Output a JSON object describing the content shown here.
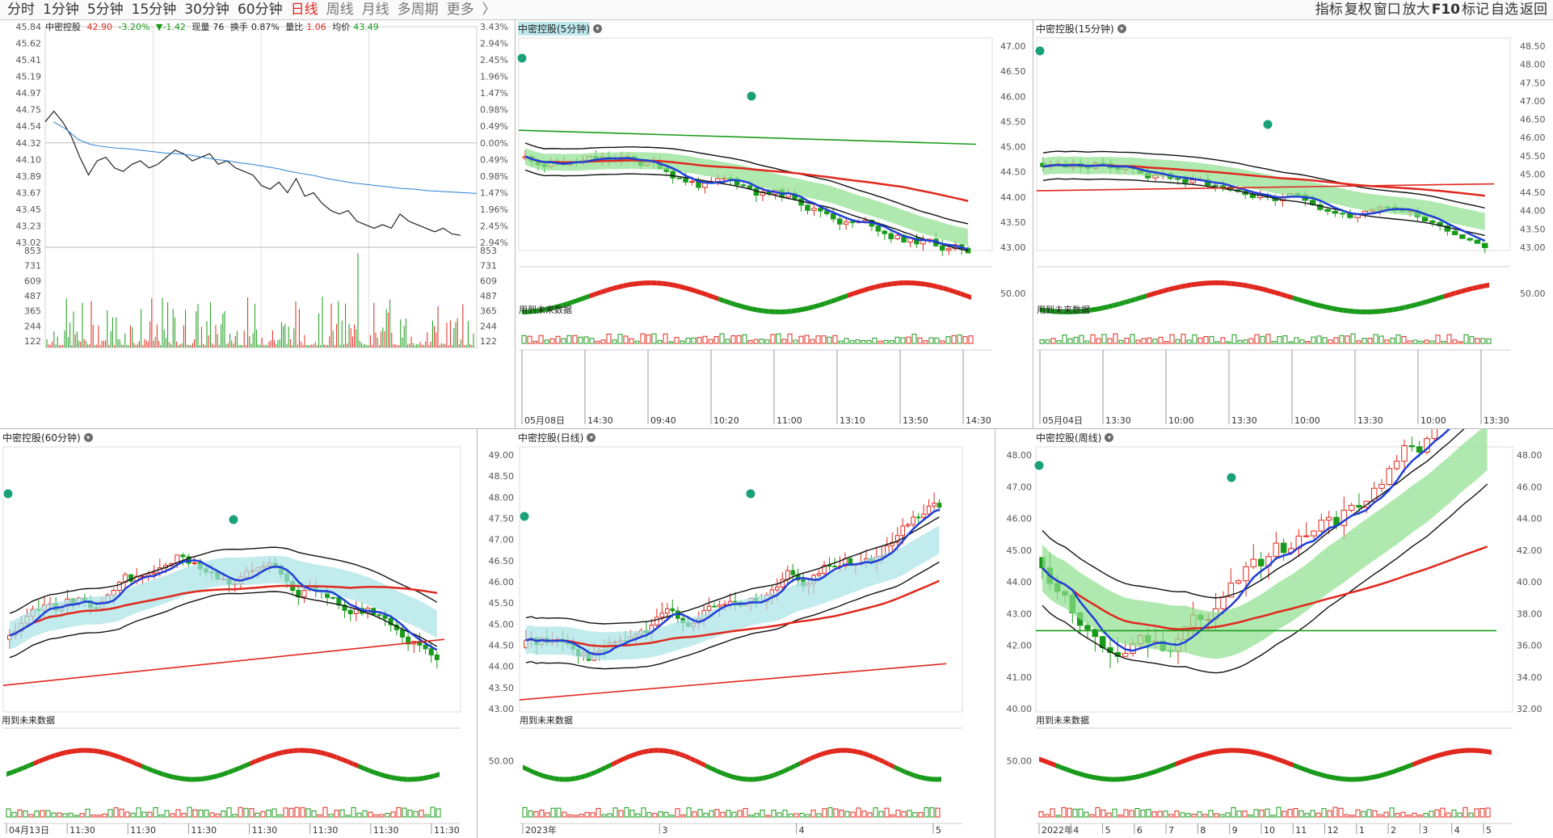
{
  "toolbar": {
    "periods": [
      {
        "label": "分时",
        "active": false
      },
      {
        "label": "1分钟",
        "active": false
      },
      {
        "label": "5分钟",
        "active": false
      },
      {
        "label": "15分钟",
        "active": false
      },
      {
        "label": "30分钟",
        "active": false
      },
      {
        "label": "60分钟",
        "active": false
      },
      {
        "label": "日线",
        "active": true
      },
      {
        "label": "周线",
        "active": false
      },
      {
        "label": "月线",
        "active": false
      },
      {
        "label": "多周期",
        "active": false
      },
      {
        "label": "更多",
        "active": false
      },
      {
        "label": "〉",
        "active": false
      }
    ],
    "tools": [
      "指标",
      "复权",
      "窗口",
      "放大",
      "F10",
      "标记",
      "自选",
      "返回"
    ]
  },
  "intraday": {
    "stock": "中密控股",
    "price": "42.90",
    "change_pct": "-3.20%",
    "change": "▼-1.42",
    "volume_label": "现量",
    "volume": "76",
    "turnover_label": "换手",
    "turnover": "0.87%",
    "ratio_label": "量比",
    "ratio": "1.06",
    "avg_label": "均价",
    "avg": "43.49",
    "price_ticks": [
      "45.84",
      "45.62",
      "45.41",
      "45.19",
      "44.97",
      "44.75",
      "44.54",
      "44.32",
      "44.10",
      "43.89",
      "43.67",
      "43.45",
      "43.23",
      "43.02"
    ],
    "pct_ticks": [
      "3.43%",
      "2.94%",
      "2.45%",
      "1.96%",
      "1.47%",
      "0.98%",
      "0.49%",
      "0.00%",
      "0.49%",
      "0.98%",
      "1.47%",
      "1.96%",
      "2.45%",
      "2.94%"
    ],
    "vol_ticks": [
      "853",
      "731",
      "609",
      "487",
      "365",
      "244",
      "122"
    ],
    "price_line": [
      44.5,
      44.65,
      44.5,
      44.3,
      44.0,
      43.75,
      43.95,
      44.0,
      43.85,
      43.8,
      43.9,
      43.95,
      43.85,
      43.9,
      44.0,
      44.1,
      44.05,
      43.95,
      44.0,
      44.05,
      43.9,
      43.95,
      43.85,
      43.8,
      43.75,
      43.6,
      43.55,
      43.65,
      43.5,
      43.7,
      43.45,
      43.5,
      43.35,
      43.25,
      43.2,
      43.25,
      43.1,
      43.05,
      43.0,
      43.05,
      43.0,
      43.2,
      43.1,
      43.05,
      43.0,
      42.95,
      43.0,
      42.92,
      42.9
    ],
    "avg_line": [
      44.5,
      44.4,
      44.25,
      44.18,
      44.15,
      44.13,
      44.12,
      44.1,
      44.08,
      44.06,
      44.05,
      44.03,
      44.0,
      43.97,
      43.95,
      43.92,
      43.9,
      43.87,
      43.84,
      43.8,
      43.77,
      43.74,
      43.7,
      43.67,
      43.64,
      43.62,
      43.6,
      43.58,
      43.56,
      43.55,
      43.53,
      43.52,
      43.51,
      43.5,
      43.49
    ]
  },
  "charts": {
    "p5": {
      "title": "中密控股(5分钟)",
      "future": "用到未来数据",
      "yticks": [
        "47.00",
        "46.50",
        "46.00",
        "45.50",
        "45.00",
        "44.50",
        "44.00",
        "43.50",
        "43.00"
      ],
      "osc_tick": "50.00",
      "xticks": [
        "05月08日",
        "14:30",
        "09:40",
        "10:20",
        "11:00",
        "13:10",
        "13:50",
        "14:30"
      ]
    },
    "p15": {
      "title": "中密控股(15分钟)",
      "future": "用到未来数据",
      "yticks": [
        "48.50",
        "48.00",
        "47.50",
        "47.00",
        "46.50",
        "46.00",
        "45.50",
        "45.00",
        "44.50",
        "44.00",
        "43.50",
        "43.00"
      ],
      "osc_tick": "50.00",
      "xticks": [
        "05月04日",
        "13:30",
        "10:00",
        "13:30",
        "10:00",
        "13:30",
        "10:00",
        "13:30"
      ]
    },
    "p60": {
      "title": "中密控股(60分钟)",
      "future": "用到未来数据",
      "xticks": [
        "04月13日",
        "11:30",
        "11:30",
        "11:30",
        "11:30",
        "11:30",
        "11:30",
        "11:30"
      ]
    },
    "pday": {
      "title": "中密控股(日线)",
      "future": "用到未来数据",
      "yticks": [
        "49.00",
        "48.50",
        "48.00",
        "47.50",
        "47.00",
        "46.50",
        "46.00",
        "45.50",
        "45.00",
        "44.50",
        "44.00",
        "43.50",
        "43.00"
      ],
      "osc_tick": "50.00",
      "xticks": [
        "2023年",
        "3",
        "4",
        "5"
      ]
    },
    "pweek": {
      "title": "中密控股(周线)",
      "future": "用到未来数据",
      "yticks": [
        "48.00",
        "47.00",
        "46.00",
        "45.00",
        "44.00",
        "43.00",
        "42.00",
        "41.00",
        "40.00"
      ],
      "yticks_right": [
        "48.00",
        "46.00",
        "44.00",
        "42.00",
        "40.00",
        "38.00",
        "36.00",
        "34.00",
        "32.00"
      ],
      "osc_tick": "50.00",
      "xticks": [
        "2022年",
        "4",
        "5",
        "6",
        "7",
        "8",
        "9",
        "10",
        "11",
        "12",
        "1",
        "2",
        "3",
        "4",
        "5"
      ]
    }
  },
  "colors": {
    "up": "#e0281e",
    "down": "#1a9a1a",
    "ma_blue": "#1f3fd6",
    "band_fill": "#a8e3e6",
    "cloud_fill": "#8fe08f"
  }
}
